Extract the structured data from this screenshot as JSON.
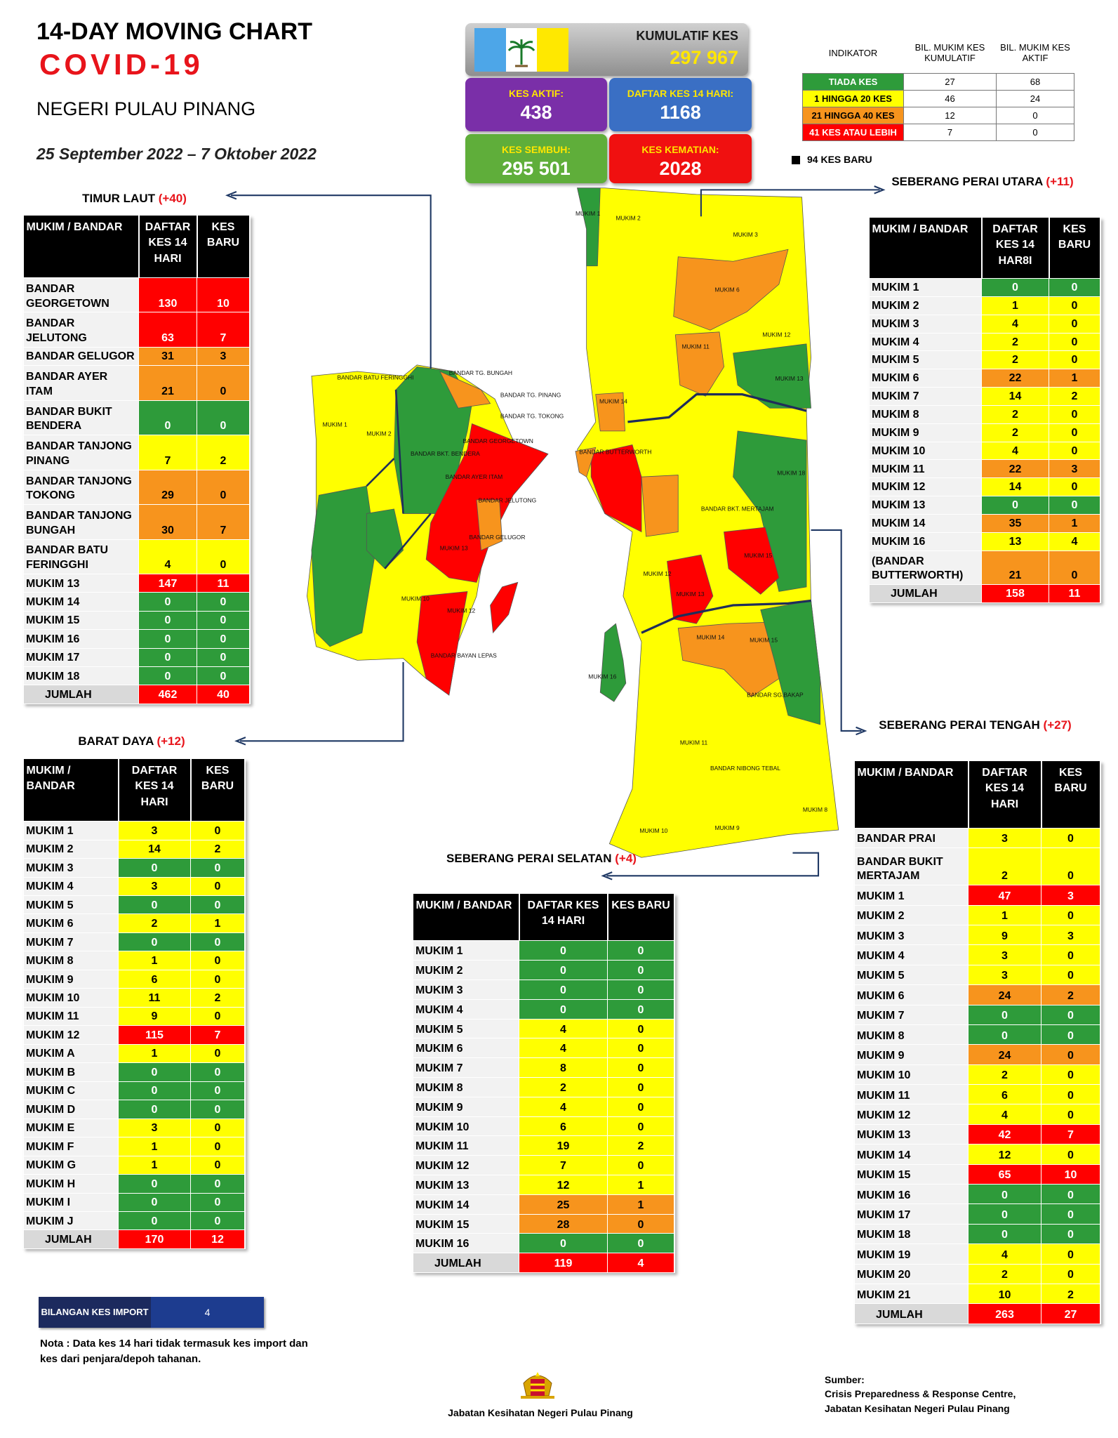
{
  "header": {
    "title": "14-DAY MOVING CHART",
    "subtitle": "COVID-19",
    "region": "NEGERI PULAU PINANG",
    "period": "25 September 2022 – 7 Oktober 2022"
  },
  "stats": {
    "cumulative": {
      "label": "KUMULATIF KES",
      "value": "297 967"
    },
    "active": {
      "label": "KES AKTIF:",
      "value": "438"
    },
    "list14": {
      "label": "DAFTAR KES 14 HARI:",
      "value": "1168"
    },
    "recovered": {
      "label": "KES SEMBUH:",
      "value": "295 501"
    },
    "deaths": {
      "label": "KES KEMATIAN:",
      "value": "2028"
    }
  },
  "indicator": {
    "columns": [
      "INDIKATOR",
      "BIL. MUKIM KES KUMULATIF",
      "BIL. MUKIM KES AKTIF"
    ],
    "rows": [
      {
        "label": "TIADA KES",
        "cumulative": 27,
        "active": 68,
        "color": "#2e9b3a"
      },
      {
        "label": "1 HINGGA 20 KES",
        "cumulative": 46,
        "active": 24,
        "color": "#ffff00"
      },
      {
        "label": "21 HINGGA 40 KES",
        "cumulative": 12,
        "active": 0,
        "color": "#f7941d"
      },
      {
        "label": "41 KES ATAU LEBIH",
        "cumulative": 7,
        "active": 0,
        "color": "#ff0000"
      }
    ],
    "new_cases": "94 KES BARU"
  },
  "districts": [
    {
      "name": "TIMUR LAUT",
      "change": "(+40)",
      "columns": [
        "MUKIM / BANDAR",
        "DAFTAR KES 14 HARI",
        "KES BARU"
      ],
      "rows": [
        [
          "BANDAR GEORGETOWN",
          130,
          10
        ],
        [
          "BANDAR JELUTONG",
          63,
          7
        ],
        [
          "BANDAR GELUGOR",
          31,
          3
        ],
        [
          "BANDAR AYER ITAM",
          21,
          0
        ],
        [
          "BANDAR BUKIT BENDERA",
          0,
          0
        ],
        [
          "BANDAR TANJONG PINANG",
          7,
          2
        ],
        [
          "BANDAR TANJONG TOKONG",
          29,
          0
        ],
        [
          "BANDAR TANJONG BUNGAH",
          30,
          7
        ],
        [
          "BANDAR BATU FERINGGHI",
          4,
          0
        ],
        [
          "MUKIM 13",
          147,
          11
        ],
        [
          "MUKIM 14",
          0,
          0
        ],
        [
          "MUKIM 15",
          0,
          0
        ],
        [
          "MUKIM 16",
          0,
          0
        ],
        [
          "MUKIM 17",
          0,
          0
        ],
        [
          "MUKIM 18",
          0,
          0
        ]
      ],
      "total": [
        "JUMLAH",
        462,
        40
      ]
    },
    {
      "name": "BARAT DAYA",
      "change": "(+12)",
      "columns": [
        "MUKIM / BANDAR",
        "DAFTAR KES 14 HARI",
        "KES BARU"
      ],
      "rows": [
        [
          "MUKIM 1",
          3,
          0
        ],
        [
          "MUKIM 2",
          14,
          2
        ],
        [
          "MUKIM 3",
          0,
          0
        ],
        [
          "MUKIM 4",
          3,
          0
        ],
        [
          "MUKIM 5",
          0,
          0
        ],
        [
          "MUKIM 6",
          2,
          1
        ],
        [
          "MUKIM 7",
          0,
          0
        ],
        [
          "MUKIM 8",
          1,
          0
        ],
        [
          "MUKIM 9",
          6,
          0
        ],
        [
          "MUKIM 10",
          11,
          2
        ],
        [
          "MUKIM 11",
          9,
          0
        ],
        [
          "MUKIM 12",
          115,
          7
        ],
        [
          "MUKIM A",
          1,
          0
        ],
        [
          "MUKIM B",
          0,
          0
        ],
        [
          "MUKIM C",
          0,
          0
        ],
        [
          "MUKIM D",
          0,
          0
        ],
        [
          "MUKIM E",
          3,
          0
        ],
        [
          "MUKIM F",
          1,
          0
        ],
        [
          "MUKIM G",
          1,
          0
        ],
        [
          "MUKIM H",
          0,
          0
        ],
        [
          "MUKIM I",
          0,
          0
        ],
        [
          "MUKIM J",
          0,
          0
        ]
      ],
      "total": [
        "JUMLAH",
        170,
        12
      ]
    },
    {
      "name": "SEBERANG PERAI UTARA",
      "change": "(+11)",
      "columns": [
        "MUKIM / BANDAR",
        "DAFTAR KES 14 HAR8I",
        "KES BARU"
      ],
      "rows": [
        [
          "MUKIM 1",
          0,
          0
        ],
        [
          "MUKIM 2",
          1,
          0
        ],
        [
          "MUKIM 3",
          4,
          0
        ],
        [
          "MUKIM 4",
          2,
          0
        ],
        [
          "MUKIM 5",
          2,
          0
        ],
        [
          "MUKIM 6",
          22,
          1
        ],
        [
          "MUKIM 7",
          14,
          2
        ],
        [
          "MUKIM 8",
          2,
          0
        ],
        [
          "MUKIM 9",
          2,
          0
        ],
        [
          "MUKIM 10",
          4,
          0
        ],
        [
          "MUKIM 11",
          22,
          3
        ],
        [
          "MUKIM 12",
          14,
          0
        ],
        [
          "MUKIM 13",
          0,
          0
        ],
        [
          "MUKIM 14",
          35,
          1
        ],
        [
          "MUKIM 16",
          13,
          4
        ],
        [
          "(BANDAR BUTTERWORTH)",
          21,
          0
        ]
      ],
      "total": [
        "JUMLAH",
        158,
        11
      ]
    },
    {
      "name": "SEBERANG PERAI TENGAH",
      "change": "(+27)",
      "columns": [
        "MUKIM / BANDAR",
        "DAFTAR KES 14 HARI",
        "KES BARU"
      ],
      "rows": [
        [
          "BANDAR PRAI",
          3,
          0
        ],
        [
          "BANDAR BUKIT MERTAJAM",
          2,
          0
        ],
        [
          "MUKIM 1",
          47,
          3
        ],
        [
          "MUKIM 2",
          1,
          0
        ],
        [
          "MUKIM 3",
          9,
          3
        ],
        [
          "MUKIM 4",
          3,
          0
        ],
        [
          "MUKIM 5",
          3,
          0
        ],
        [
          "MUKIM 6",
          24,
          2
        ],
        [
          "MUKIM 7",
          0,
          0
        ],
        [
          "MUKIM 8",
          0,
          0
        ],
        [
          "MUKIM 9",
          24,
          0
        ],
        [
          "MUKIM 10",
          2,
          0
        ],
        [
          "MUKIM 11",
          6,
          0
        ],
        [
          "MUKIM 12",
          4,
          0
        ],
        [
          "MUKIM 13",
          42,
          7
        ],
        [
          "MUKIM 14",
          12,
          0
        ],
        [
          "MUKIM 15",
          65,
          10
        ],
        [
          "MUKIM 16",
          0,
          0
        ],
        [
          "MUKIM 17",
          0,
          0
        ],
        [
          "MUKIM 18",
          0,
          0
        ],
        [
          "MUKIM 19",
          4,
          0
        ],
        [
          "MUKIM 20",
          2,
          0
        ],
        [
          "MUKIM 21",
          10,
          2
        ]
      ],
      "total": [
        "JUMLAH",
        263,
        27
      ]
    },
    {
      "name": "SEBERANG PERAI SELATAN",
      "change": "(+4)",
      "columns": [
        "MUKIM / BANDAR",
        "DAFTAR KES 14 HARI",
        "KES BARU"
      ],
      "rows": [
        [
          "MUKIM 1",
          0,
          0
        ],
        [
          "MUKIM 2",
          0,
          0
        ],
        [
          "MUKIM 3",
          0,
          0
        ],
        [
          "MUKIM 4",
          0,
          0
        ],
        [
          "MUKIM 5",
          4,
          0
        ],
        [
          "MUKIM 6",
          4,
          0
        ],
        [
          "MUKIM 7",
          8,
          0
        ],
        [
          "MUKIM 8",
          2,
          0
        ],
        [
          "MUKIM 9",
          4,
          0
        ],
        [
          "MUKIM 10",
          6,
          0
        ],
        [
          "MUKIM 11",
          19,
          2
        ],
        [
          "MUKIM 12",
          7,
          0
        ],
        [
          "MUKIM 13",
          12,
          1
        ],
        [
          "MUKIM 14",
          25,
          1
        ],
        [
          "MUKIM 15",
          28,
          0
        ],
        [
          "MUKIM 16",
          0,
          0
        ]
      ],
      "total": [
        "JUMLAH",
        119,
        4
      ]
    }
  ],
  "map": {
    "labels": [
      "BANDAR BATU FERINGGHI",
      "BANDAR TG. BUNGAH",
      "BANDAR TG. PINANG",
      "BANDAR TG. TOKONG",
      "BANDAR GEORGETOWN",
      "BANDAR AYER ITAM",
      "BANDAR JELUTONG",
      "BANDAR GELUGOR",
      "BANDAR BKT. BENDERA",
      "BANDAR BAYAN LEPAS",
      "BANDAR BUTTERWORTH",
      "BANDAR BKT. MERTAJAM",
      "BANDAR NIBONG TEBAL",
      "BANDAR SG.BAKAP",
      "MUKIM 1",
      "MUKIM 2",
      "MUKIM 13",
      "MUKIM 12",
      "MUKIM 10",
      "MUKIM 16",
      "MUKIM 1",
      "MUKIM 2",
      "MUKIM 3",
      "MUKIM 6",
      "MUKIM 11",
      "MUKIM 12",
      "MUKIM 13",
      "MUKIM 14",
      "MUKIM 18",
      "MUKIM 15",
      "MUKIM 13",
      "MUKIM 12",
      "MUKIM 14",
      "MUKIM 15",
      "MUKIM 11",
      "MUKIM 10",
      "MUKIM 9",
      "MUKIM 8"
    ]
  },
  "import": {
    "label": "BILANGAN KES IMPORT",
    "value": 4
  },
  "note": "Nota : Data kes 14 hari tidak termasuk kes import dan kes dari penjara/depoh tahanan.",
  "footer": "Jabatan Kesihatan Negeri Pulau Pinang",
  "source": {
    "label": "Sumber:",
    "lines": [
      "Crisis Preparedness & Response Centre,",
      "Jabatan Kesihatan Negeri Pulau Pinang"
    ]
  }
}
